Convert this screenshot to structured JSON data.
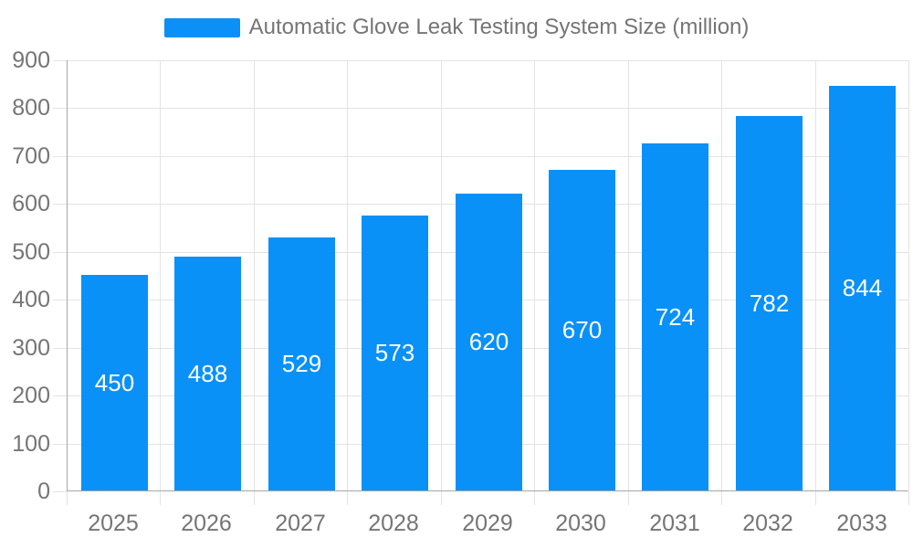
{
  "chart_data": {
    "type": "bar",
    "title": "Automatic Glove Leak Testing System Size (million)",
    "categories": [
      "2025",
      "2026",
      "2027",
      "2028",
      "2029",
      "2030",
      "2031",
      "2032",
      "2033"
    ],
    "values": [
      450,
      488,
      529,
      573,
      620,
      670,
      724,
      782,
      844
    ],
    "series": [
      {
        "name": "Automatic Glove Leak Testing System Size (million)",
        "values": [
          450,
          488,
          529,
          573,
          620,
          670,
          724,
          782,
          844
        ]
      }
    ],
    "xlabel": "",
    "ylabel": "",
    "ylim": [
      0,
      900
    ],
    "yticks": [
      0,
      100,
      200,
      300,
      400,
      500,
      600,
      700,
      800,
      900
    ],
    "grid": "on",
    "legend_position": "top",
    "bar_labels_visible": true,
    "colors": {
      "bar": "#0991f8",
      "bar_label": "#ffffff",
      "axis_text": "#757575",
      "grid_line": "#e3e3e3",
      "axis_line": "#a6a6a6",
      "background": "#ffffff"
    }
  }
}
